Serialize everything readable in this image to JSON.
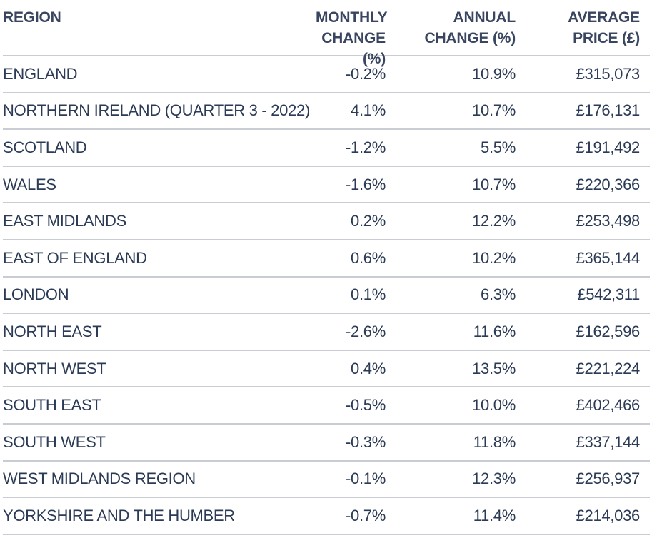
{
  "headers": {
    "region": "REGION",
    "monthly": [
      "MONTHLY",
      "CHANGE (%)"
    ],
    "annual": [
      "ANNUAL",
      "CHANGE (%)"
    ],
    "price": [
      "AVERAGE",
      "PRICE (£)"
    ]
  },
  "rows": [
    {
      "region": "ENGLAND",
      "monthly": "-0.2%",
      "annual": "10.9%",
      "price": "£315,073"
    },
    {
      "region": "NORTHERN IRELAND (QUARTER 3 - 2022)",
      "monthly": "4.1%",
      "annual": "10.7%",
      "price": "£176,131"
    },
    {
      "region": "SCOTLAND",
      "monthly": "-1.2%",
      "annual": "5.5%",
      "price": "£191,492"
    },
    {
      "region": "WALES",
      "monthly": "-1.6%",
      "annual": "10.7%",
      "price": "£220,366"
    },
    {
      "region": "EAST MIDLANDS",
      "monthly": "0.2%",
      "annual": "12.2%",
      "price": "£253,498"
    },
    {
      "region": "EAST OF ENGLAND",
      "monthly": "0.6%",
      "annual": "10.2%",
      "price": "£365,144"
    },
    {
      "region": "LONDON",
      "monthly": "0.1%",
      "annual": "6.3%",
      "price": "£542,311"
    },
    {
      "region": "NORTH EAST",
      "monthly": "-2.6%",
      "annual": "11.6%",
      "price": "£162,596"
    },
    {
      "region": "NORTH WEST",
      "monthly": "0.4%",
      "annual": "13.5%",
      "price": "£221,224"
    },
    {
      "region": "SOUTH EAST",
      "monthly": "-0.5%",
      "annual": "10.0%",
      "price": "£402,466"
    },
    {
      "region": "SOUTH WEST",
      "monthly": "-0.3%",
      "annual": "11.8%",
      "price": "£337,144"
    },
    {
      "region": "WEST MIDLANDS REGION",
      "monthly": "-0.1%",
      "annual": "12.3%",
      "price": "£256,937"
    },
    {
      "region": "YORKSHIRE AND THE HUMBER",
      "monthly": "-0.7%",
      "annual": "11.4%",
      "price": "£214,036"
    }
  ],
  "colors": {
    "text": "#2b3a55",
    "rule": "#c9ccd3"
  }
}
